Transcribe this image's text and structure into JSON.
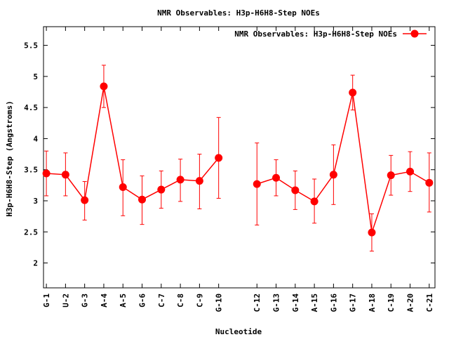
{
  "chart_data": {
    "type": "line",
    "title": "NMR Observables: H3p-H6H8-Step NOEs",
    "xlabel": "Nucleotide",
    "ylabel": "H3p-H6H8-Step (Angstroms)",
    "ylim": [
      1.6,
      5.8
    ],
    "yticks": [
      "2",
      "2.5",
      "3",
      "3.5",
      "4",
      "4.5",
      "5",
      "5.5"
    ],
    "grid": false,
    "legend_position": "top-right",
    "series_color": "#ff0000",
    "categories": [
      "G-1",
      "U-2",
      "G-3",
      "A-4",
      "A-5",
      "G-6",
      "C-7",
      "C-8",
      "C-9",
      "G-10",
      "C-12",
      "G-13",
      "G-14",
      "A-15",
      "G-16",
      "G-17",
      "A-18",
      "C-19",
      "A-20",
      "C-21"
    ],
    "x_positions": [
      1,
      2,
      3,
      4,
      5,
      6,
      7,
      8,
      9,
      10,
      12,
      13,
      14,
      15,
      16,
      17,
      18,
      19,
      20,
      21
    ],
    "series": [
      {
        "name": "NMR Observables: H3p-H6H8-Step NOEs",
        "segments": [
          {
            "values": [
              3.44,
              3.42,
              3.01,
              4.84,
              3.22,
              3.02,
              3.18,
              3.34,
              3.32,
              3.69
            ],
            "err_low": [
              3.08,
              3.08,
              2.69,
              4.5,
              2.76,
              2.62,
              2.88,
              2.99,
              2.87,
              3.04
            ],
            "err_high": [
              3.8,
              3.77,
              3.31,
              5.18,
              3.66,
              3.4,
              3.48,
              3.67,
              3.75,
              4.34
            ]
          },
          {
            "values": [
              3.27,
              3.37,
              3.17,
              2.99,
              3.42,
              4.74,
              2.49,
              3.41,
              3.47,
              3.29
            ],
            "err_low": [
              2.61,
              3.08,
              2.86,
              2.64,
              2.94,
              4.46,
              2.19,
              3.09,
              3.15,
              2.82
            ],
            "err_high": [
              3.93,
              3.66,
              3.48,
              3.35,
              3.9,
              5.02,
              2.79,
              3.73,
              3.79,
              3.77
            ]
          }
        ]
      }
    ]
  }
}
